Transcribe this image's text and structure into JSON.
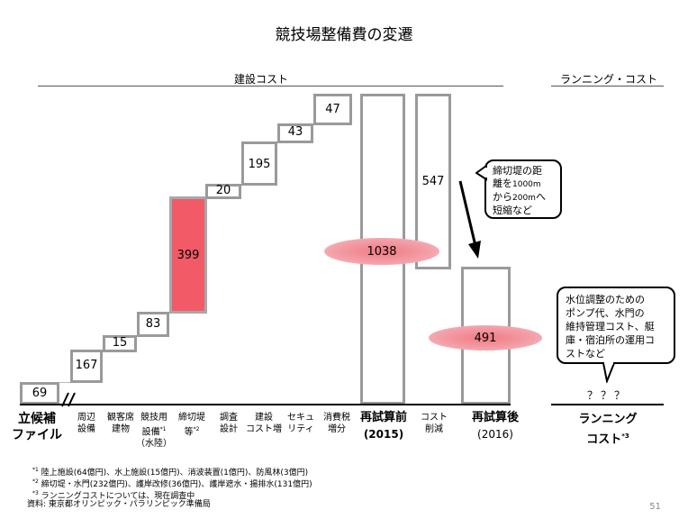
{
  "title": "競技場整備費の変遷",
  "sections": {
    "construction": "建設コスト",
    "running": "ランニング・コスト"
  },
  "chart_data": {
    "type": "waterfall",
    "title": "競技場整備費の変遷",
    "unit": "億円",
    "steps": [
      {
        "label": "立候補ファイル",
        "value": 69,
        "kind": "base"
      },
      {
        "label": "周辺設備",
        "value": 167,
        "kind": "increase"
      },
      {
        "label": "観客席建物",
        "value": 15,
        "kind": "increase"
      },
      {
        "label": "競技用設備*1(水陸)",
        "value": 83,
        "kind": "increase"
      },
      {
        "label": "締切堤等*2",
        "value": 399,
        "kind": "increase"
      },
      {
        "label": "調査設計",
        "value": 20,
        "kind": "increase"
      },
      {
        "label": "建設コスト増",
        "value": 195,
        "kind": "increase"
      },
      {
        "label": "セキュリティ",
        "value": 43,
        "kind": "increase"
      },
      {
        "label": "消費税増分",
        "value": 47,
        "kind": "increase"
      },
      {
        "label": "再試算前(2015)",
        "value": 1038,
        "kind": "total"
      },
      {
        "label": "コスト削減",
        "value": 547,
        "kind": "decrease"
      },
      {
        "label": "再試算後(2016)",
        "value": 491,
        "kind": "total"
      }
    ],
    "running_cost": "？？？"
  },
  "bars": {
    "v69": "69",
    "v167": "167",
    "v15": "15",
    "v83": "83",
    "v399": "399",
    "v20": "20",
    "v195": "195",
    "v43": "43",
    "v47": "47",
    "v1038": "1038",
    "v547": "547",
    "v491": "491",
    "running": "？？？"
  },
  "xlabels": {
    "candidacy_1": "立候補",
    "candidacy_2": "ファイル",
    "peripheral_1": "周辺",
    "peripheral_2": "設備",
    "spectator_1": "観客席",
    "spectator_2": "建物",
    "competition_1": "競技用",
    "competition_2": "設備",
    "competition_sup": "*1",
    "competition_3": "（水陸）",
    "cofferdam_1": "締切堤",
    "cofferdam_2": "等",
    "cofferdam_sup": "*2",
    "survey_1": "調査",
    "survey_2": "設計",
    "construction_1": "建設",
    "construction_2": "コスト増",
    "security_1": "セキュ",
    "security_2": "リティ",
    "tax_1": "消費税",
    "tax_2": "増分",
    "before_1": "再試算前",
    "before_2": "(2015)",
    "reduction_1": "コスト",
    "reduction_2": "削減",
    "after_1": "再試算後",
    "after_2": "(2016)",
    "running_1": "ランニング",
    "running_2": "コスト",
    "running_sup": "*3"
  },
  "callouts": {
    "dike_1": "締切堤の距",
    "dike_2a": "離を",
    "dike_2b": "1000m",
    "dike_3a": "から",
    "dike_3b": "200m",
    "dike_3c": "へ",
    "dike_4": "短縮など",
    "running_1": "水位調整のための",
    "running_2": "ポンプ代、水門の",
    "running_3": "維持管理コスト、艇",
    "running_4": "庫・宿泊所の運用コ",
    "running_5": "ストなど"
  },
  "footnotes": {
    "n1_mark": "*1",
    "n1": "陸上施設(64億円)、水上施設(15億円)、消波装置(1億円)、防風林(3億円)",
    "n2_mark": "*2",
    "n2": "締切堤・水門(232億円)、護岸改修(36億円)、護岸遮水・揚排水(131億円)",
    "n3_mark": "*3",
    "n3": "ランニングコストについては、現在調査中",
    "source": "資料: 東京都オリンピック・パラリンピック準備局"
  },
  "page_number": "51",
  "colors": {
    "highlight_bar": "#f25a68",
    "box_border": "#9a9a9a",
    "ellipse": "#f07a85"
  }
}
